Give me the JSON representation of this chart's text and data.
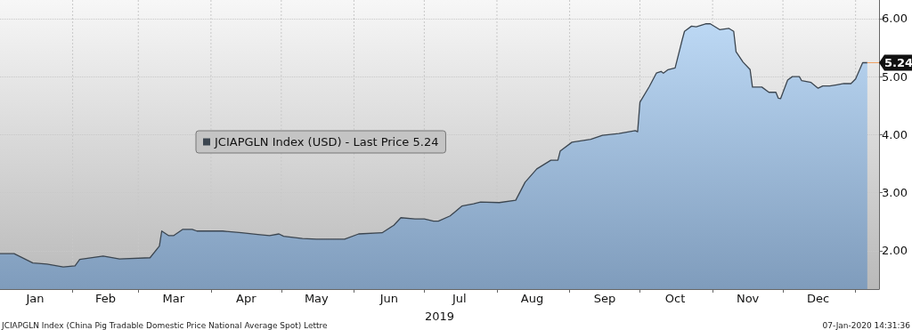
{
  "chart_data": {
    "type": "area",
    "xlabel": "2019",
    "annotations": [
      {
        "text": "5.24",
        "x": "2020-01-06",
        "y": 5.24
      },
      "JCIAPGLN Index (China Pig Tradable Domestic Price National Average Spot) Lettre",
      "07-Jan-2020 14:31:36"
    ],
    "x": [
      "2019-01-01",
      "2019-01-07",
      "2019-01-15",
      "2019-01-21",
      "2019-01-28",
      "2019-02-02",
      "2019-02-04",
      "2019-02-14",
      "2019-02-21",
      "2019-03-06",
      "2019-03-10",
      "2019-03-11",
      "2019-03-14",
      "2019-03-16",
      "2019-03-20",
      "2019-03-24",
      "2019-03-26",
      "2019-04-06",
      "2019-04-14",
      "2019-04-21",
      "2019-04-26",
      "2019-04-30",
      "2019-05-02",
      "2019-05-10",
      "2019-05-16",
      "2019-05-28",
      "2019-06-03",
      "2019-06-13",
      "2019-06-18",
      "2019-06-21",
      "2019-06-27",
      "2019-07-01",
      "2019-07-05",
      "2019-07-07",
      "2019-07-12",
      "2019-07-17",
      "2019-07-22",
      "2019-07-25",
      "2019-08-02",
      "2019-08-09",
      "2019-08-13",
      "2019-08-18",
      "2019-08-24",
      "2019-08-27",
      "2019-08-28",
      "2019-09-02",
      "2019-09-10",
      "2019-09-15",
      "2019-09-22",
      "2019-09-29",
      "2019-09-30",
      "2019-10-01",
      "2019-10-05",
      "2019-10-08",
      "2019-10-10",
      "2019-10-11",
      "2019-10-13",
      "2019-10-16",
      "2019-10-19",
      "2019-10-20",
      "2019-10-23",
      "2019-10-25",
      "2019-10-29",
      "2019-10-31",
      "2019-11-04",
      "2019-11-08",
      "2019-11-10",
      "2019-11-11",
      "2019-11-14",
      "2019-11-17",
      "2019-11-18",
      "2019-11-22",
      "2019-11-25",
      "2019-11-28",
      "2019-11-29",
      "2019-11-30",
      "2019-12-03",
      "2019-12-05",
      "2019-12-08",
      "2019-12-09",
      "2019-12-13",
      "2019-12-16",
      "2019-12-18",
      "2019-12-21",
      "2019-12-24",
      "2019-12-27",
      "2019-12-30",
      "2020-01-01",
      "2020-01-04",
      "2020-01-06"
    ],
    "series": [
      {
        "name": "JCIAPGLN Index (USD) - Last Price 5.24",
        "color": "#3c4650",
        "values": [
          1.95,
          1.95,
          1.79,
          1.77,
          1.72,
          1.74,
          1.85,
          1.91,
          1.86,
          1.88,
          2.08,
          2.34,
          2.26,
          2.26,
          2.37,
          2.37,
          2.34,
          2.34,
          2.31,
          2.28,
          2.26,
          2.29,
          2.25,
          2.21,
          2.2,
          2.2,
          2.29,
          2.31,
          2.44,
          2.57,
          2.55,
          2.55,
          2.51,
          2.51,
          2.6,
          2.77,
          2.81,
          2.84,
          2.83,
          2.87,
          3.18,
          3.41,
          3.56,
          3.56,
          3.72,
          3.87,
          3.92,
          3.99,
          4.02,
          4.07,
          4.05,
          4.56,
          4.83,
          5.06,
          5.09,
          5.06,
          5.12,
          5.15,
          5.63,
          5.78,
          5.87,
          5.86,
          5.91,
          5.91,
          5.81,
          5.83,
          5.78,
          5.43,
          5.25,
          5.12,
          4.82,
          4.82,
          4.73,
          4.73,
          4.63,
          4.62,
          4.94,
          5.0,
          5.0,
          4.93,
          4.9,
          4.8,
          4.84,
          4.84,
          4.86,
          4.88,
          4.88,
          4.96,
          5.24,
          5.24
        ]
      }
    ],
    "xlim": [
      "2019-01-01",
      "2020-01-11"
    ],
    "xticks": [
      {
        "value": "2019-01-16",
        "label": "Jan"
      },
      {
        "value": "2019-02-01",
        "label": null
      },
      {
        "value": "2019-02-15",
        "label": "Feb"
      },
      {
        "value": "2019-03-01",
        "label": null
      },
      {
        "value": "2019-03-16",
        "label": "Mar"
      },
      {
        "value": "2019-04-01",
        "label": null
      },
      {
        "value": "2019-04-16",
        "label": "Apr"
      },
      {
        "value": "2019-05-01",
        "label": null
      },
      {
        "value": "2019-05-16",
        "label": "May"
      },
      {
        "value": "2019-06-01",
        "label": null
      },
      {
        "value": "2019-06-16",
        "label": "Jun"
      },
      {
        "value": "2019-07-01",
        "label": null
      },
      {
        "value": "2019-07-16",
        "label": "Jul"
      },
      {
        "value": "2019-08-01",
        "label": null
      },
      {
        "value": "2019-08-16",
        "label": "Aug"
      },
      {
        "value": "2019-09-01",
        "label": null
      },
      {
        "value": "2019-09-16",
        "label": "Sep"
      },
      {
        "value": "2019-10-01",
        "label": null
      },
      {
        "value": "2019-10-16",
        "label": "Oct"
      },
      {
        "value": "2019-11-01",
        "label": null
      },
      {
        "value": "2019-11-16",
        "label": "Nov"
      },
      {
        "value": "2019-12-01",
        "label": null
      },
      {
        "value": "2019-12-16",
        "label": "Dec"
      },
      {
        "value": "2020-01-01",
        "label": null
      }
    ],
    "ylim": [
      1.34,
      6.32
    ],
    "yticks": [
      {
        "value": 2,
        "label": "2.00"
      },
      {
        "value": 3,
        "label": "3.00"
      },
      {
        "value": 4,
        "label": "4.00"
      },
      {
        "value": 5,
        "label": "5.00"
      },
      {
        "value": 6,
        "label": "6.00"
      }
    ],
    "grid": true,
    "legend": "center",
    "marker": "none",
    "line_style": "solid"
  }
}
